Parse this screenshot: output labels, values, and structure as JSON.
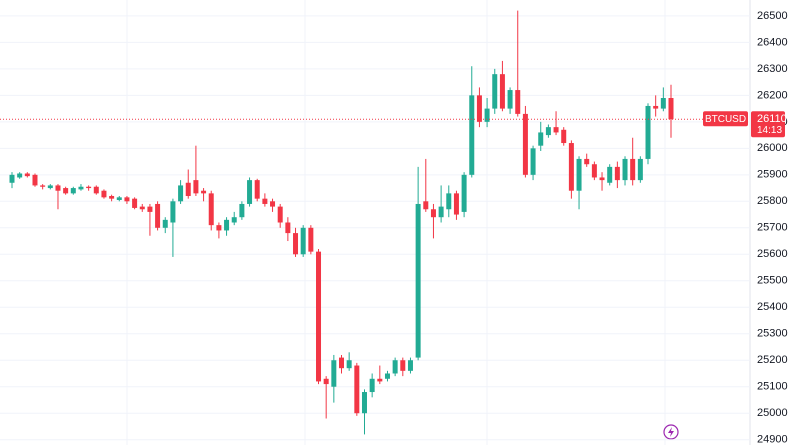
{
  "chart_data": {
    "type": "candlestick",
    "symbol": "BTCUSD",
    "last_price": 26110,
    "countdown": "14:13",
    "up_color": "#22ab94",
    "down_color": "#f23645",
    "ylim": [
      24880,
      26560
    ],
    "yticks": [
      24900,
      25000,
      25100,
      25200,
      25300,
      25400,
      25500,
      25600,
      25700,
      25800,
      25900,
      26000,
      26100,
      26200,
      26300,
      26400,
      26500
    ],
    "grid": true,
    "open": [
      25870,
      25890,
      25905,
      25900,
      25860,
      25850,
      25860,
      25850,
      25830,
      25845,
      25855,
      25855,
      25840,
      25820,
      25805,
      25815,
      25810,
      25780,
      25780,
      25790,
      25700,
      25720,
      25800,
      25870,
      25880,
      25840,
      25830,
      25710,
      25690,
      25720,
      25740,
      25790,
      25880,
      25810,
      25800,
      25780,
      25720,
      25680,
      25600,
      25700,
      25610,
      25130,
      25100,
      25210,
      25170,
      25180,
      25000,
      25080,
      25130,
      25130,
      25150,
      25200,
      25160,
      25210,
      25800,
      25770,
      25740,
      25770,
      25830,
      25760,
      25900,
      26200,
      26100,
      26150,
      26280,
      26150,
      26220,
      26130,
      25900,
      26010,
      26050,
      26080,
      26070,
      26020,
      25840,
      25960,
      25940,
      25890,
      25870,
      25930,
      25880,
      25960,
      25880,
      25960,
      26160,
      26150,
      26190
    ],
    "high": [
      25910,
      25910,
      25910,
      25905,
      25865,
      25865,
      25865,
      25855,
      25855,
      25865,
      25860,
      25860,
      25845,
      25825,
      25820,
      25820,
      25815,
      25790,
      25790,
      25800,
      25740,
      25810,
      25880,
      25920,
      26010,
      25850,
      25840,
      25720,
      25740,
      25760,
      25800,
      25890,
      25885,
      25830,
      25810,
      25790,
      25740,
      25700,
      25710,
      25710,
      25620,
      25140,
      25220,
      25220,
      25230,
      25190,
      25090,
      25150,
      25180,
      25160,
      25210,
      25210,
      25210,
      25930,
      25960,
      25790,
      25860,
      25860,
      25840,
      25910,
      26310,
      26230,
      26190,
      26300,
      26330,
      26230,
      26520,
      26160,
      26010,
      26100,
      26090,
      26140,
      26080,
      26030,
      25970,
      25980,
      25950,
      25910,
      25940,
      25950,
      25970,
      26040,
      25970,
      26170,
      26200,
      26230,
      26240
    ],
    "low": [
      25850,
      25885,
      25890,
      25855,
      25845,
      25845,
      25770,
      25825,
      25825,
      25840,
      25840,
      25825,
      25810,
      25800,
      25800,
      25790,
      25770,
      25760,
      25670,
      25690,
      25680,
      25590,
      25790,
      25810,
      25820,
      25800,
      25690,
      25660,
      25670,
      25710,
      25730,
      25780,
      25800,
      25780,
      25760,
      25700,
      25650,
      25590,
      25590,
      25600,
      25110,
      24980,
      25040,
      25150,
      25160,
      24990,
      24920,
      25060,
      25110,
      25120,
      25140,
      25140,
      25150,
      25200,
      25760,
      25660,
      25720,
      25740,
      25730,
      25740,
      25890,
      26080,
      26080,
      26130,
      26140,
      26130,
      26120,
      25890,
      25880,
      25990,
      26040,
      26050,
      26010,
      25810,
      25770,
      25930,
      25880,
      25840,
      25860,
      25850,
      25860,
      25860,
      25870,
      25940,
      26120,
      26140,
      26040
    ],
    "close": [
      25900,
      25905,
      25895,
      25860,
      25855,
      25860,
      25840,
      25830,
      25850,
      25855,
      25850,
      25830,
      25815,
      25810,
      25815,
      25800,
      25775,
      25770,
      25760,
      25700,
      25730,
      25800,
      25860,
      25820,
      25830,
      25830,
      25710,
      25690,
      25730,
      25740,
      25790,
      25880,
      25810,
      25790,
      25780,
      25720,
      25680,
      25600,
      25700,
      25610,
      25120,
      25110,
      25200,
      25170,
      25200,
      25000,
      25080,
      25130,
      25120,
      25150,
      25200,
      25160,
      25200,
      25790,
      25770,
      25740,
      25780,
      25830,
      25750,
      25900,
      26200,
      26100,
      26150,
      26280,
      26150,
      26220,
      26130,
      25900,
      26000,
      26060,
      26080,
      26060,
      26020,
      25840,
      25960,
      25940,
      25890,
      25880,
      25930,
      25880,
      25960,
      25880,
      25960,
      26160,
      26150,
      26190,
      26110
    ]
  }
}
